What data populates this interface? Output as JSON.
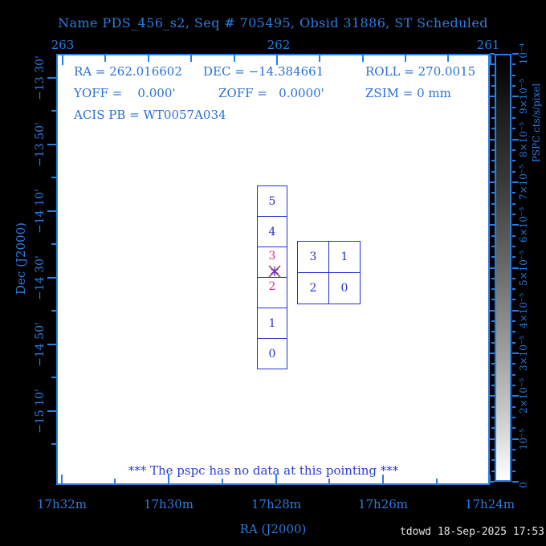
{
  "title": "Name PDS_456_s2, Seq # 705495, Obsid 31886, ST Scheduled",
  "info": {
    "ra": "RA = 262.016602",
    "dec": "DEC = −14.384661",
    "roll": "ROLL = 270.0015",
    "yoff": "YOFF =    0.000'",
    "zoff": "ZOFF =   0.0000'",
    "zsim": "ZSIM = 0 mm",
    "acis_pb": "ACIS PB = WT0057A034"
  },
  "axes": {
    "top": {
      "ticks": [
        "263",
        "262",
        "261"
      ]
    },
    "bottom": {
      "label": "RA (J2000)",
      "ticks": [
        "17h32m",
        "17h30m",
        "17h28m",
        "17h26m",
        "17h24m"
      ]
    },
    "left": {
      "label": "Dec (J2000)",
      "ticks": [
        "−13 30'",
        "−13 50'",
        "−14 10'",
        "−14 30'",
        "−14 50'",
        "−15 10'"
      ]
    }
  },
  "colorbar": {
    "label": "PSPC cts/s/pixel",
    "ticks": [
      "10⁻⁴",
      "9×10⁻⁵",
      "8×10⁻⁵",
      "7×10⁻⁵",
      "6×10⁻⁵",
      "5×10⁻⁵",
      "4×10⁻⁵",
      "3×10⁻⁵",
      "2×10⁻⁵",
      "10⁻⁵",
      "0"
    ]
  },
  "detector": {
    "acis_s_chips": [
      "5",
      "4",
      "3",
      "2",
      "1",
      "0"
    ],
    "acis_i_chips": [
      "3",
      "1",
      "2",
      "0"
    ],
    "active_chips": "3,2"
  },
  "message": "*** The pspc has no data at this pointing ***",
  "footer": "tdowd 18-Sep-2025 17:53",
  "colors": {
    "accent_blue": "#2a7de2",
    "detector_blue": "#2733cf",
    "active_magenta": "#e6218f",
    "marker_red": "#c4463a",
    "marker_violet": "#5534d6",
    "plot_background": "#ffffff",
    "page_background": "#000000"
  }
}
